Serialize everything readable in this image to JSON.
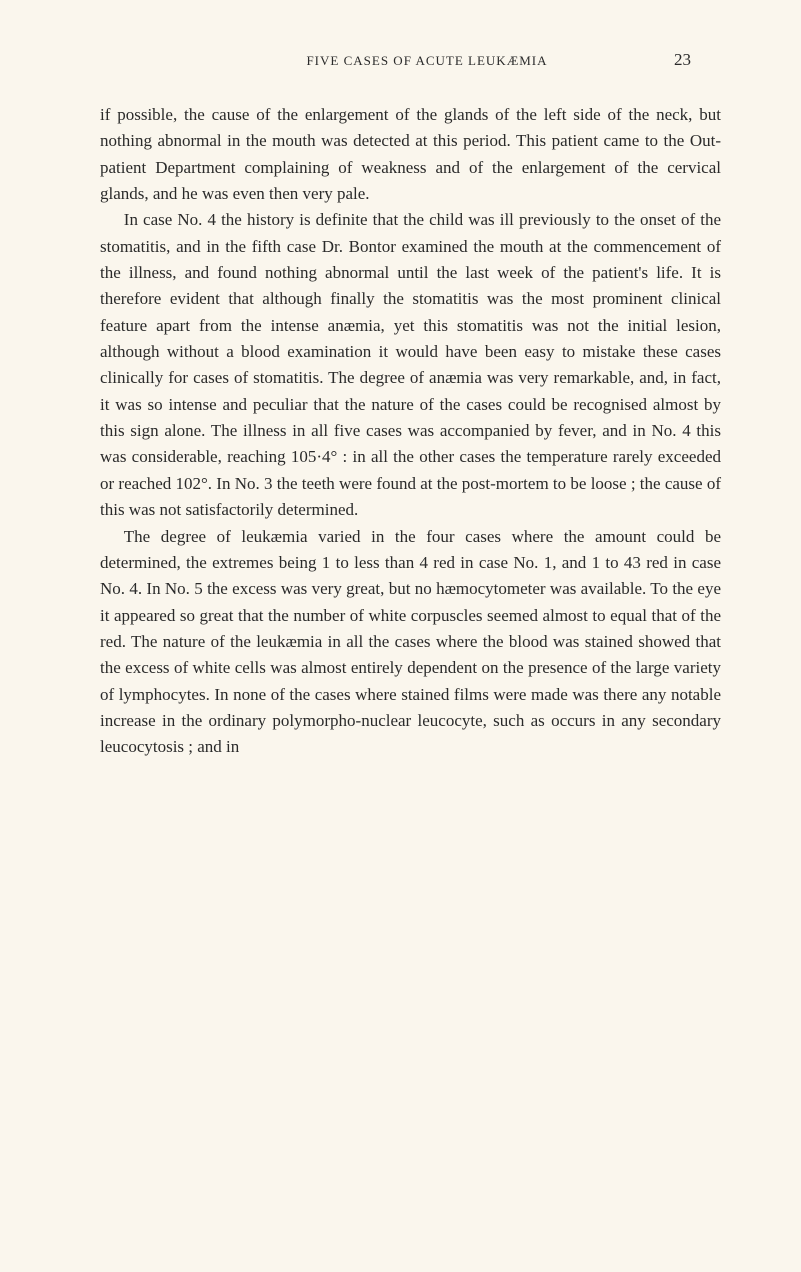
{
  "header": {
    "running_title": "FIVE CASES OF ACUTE LEUKÆMIA",
    "page_number": "23"
  },
  "paragraphs": {
    "p1": "if possible, the cause of the enlargement of the glands of the left side of the neck, but nothing abnormal in the mouth was detected at this period. This patient came to the Out-patient Department complaining of weakness and of the enlargement of the cervical glands, and he was even then very pale.",
    "p2": "In case No. 4 the history is definite that the child was ill previously to the onset of the stomatitis, and in the fifth case Dr. Bontor examined the mouth at the commencement of the illness, and found nothing abnormal until the last week of the patient's life. It is therefore evident that although finally the stomatitis was the most prominent clinical feature apart from the intense anæmia, yet this stomatitis was not the initial lesion, although without a blood examination it would have been easy to mistake these cases clinically for cases of stomatitis. The degree of anæmia was very remarkable, and, in fact, it was so intense and peculiar that the nature of the cases could be recognised almost by this sign alone. The illness in all five cases was accompanied by fever, and in No. 4 this was considerable, reaching 105·4° : in all the other cases the temperature rarely exceeded or reached 102°. In No. 3 the teeth were found at the post-mortem to be loose ; the cause of this was not satisfactorily determined.",
    "p3": "The degree of leukæmia varied in the four cases where the amount could be determined, the extremes being 1 to less than 4 red in case No. 1, and 1 to 43 red in case No. 4. In No. 5 the excess was very great, but no hæmocytometer was available. To the eye it appeared so great that the number of white corpuscles seemed almost to equal that of the red. The nature of the leukæmia in all the cases where the blood was stained showed that the excess of white cells was almost entirely dependent on the presence of the large variety of lymphocytes. In none of the cases where stained films were made was there any notable increase in the ordinary polymorpho-nuclear leucocyte, such as occurs in any secondary leucocytosis ; and in"
  },
  "styling": {
    "background_color": "#faf6ed",
    "text_color": "#2a2a2a",
    "body_font_size": 17,
    "header_font_size": 13,
    "page_number_font_size": 17,
    "line_height": 1.55
  }
}
